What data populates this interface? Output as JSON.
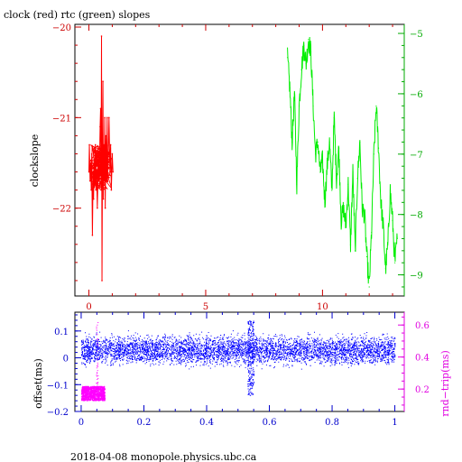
{
  "title": "clock (red) rtc (green) slopes",
  "footer": "2018-04-08  monopole.physics.ubc.ca",
  "colors": {
    "clock": "#ff0000",
    "rtc": "#00ee00",
    "offset": "#0000ff",
    "rndtrip": "#ff00ff",
    "axis_red": "#cc0000",
    "axis_green": "#00aa00",
    "axis_blue": "#0000cc",
    "axis_mag": "#e000e0"
  },
  "chart_data": [
    {
      "type": "line",
      "ylabel": "clockslope",
      "xlim": [
        -0.6,
        13.5
      ],
      "xticks": [
        0,
        5,
        10
      ],
      "left_axis": {
        "ylim": [
          -22.97,
          -19.97
        ],
        "ticks": [
          -20,
          -21,
          -22
        ]
      },
      "right_axis": {
        "ylim": [
          -9.35,
          -4.85
        ],
        "ticks": [
          -5,
          -6,
          -7,
          -8,
          -9
        ]
      },
      "series": [
        {
          "name": "clock",
          "axis": "left",
          "x": [
            0.0,
            0.02,
            0.05,
            0.08,
            0.1,
            0.12,
            0.15,
            0.18,
            0.2,
            0.22,
            0.25,
            0.28,
            0.3,
            0.33,
            0.36,
            0.4,
            0.44,
            0.48,
            0.5,
            0.52,
            0.54,
            0.56,
            0.58,
            0.6,
            0.62,
            0.64,
            0.66,
            0.68,
            0.7,
            0.72,
            0.75,
            0.78,
            0.8,
            0.83,
            0.86,
            0.9,
            0.93,
            0.96,
            1.0,
            1.03
          ],
          "y": [
            -21.6,
            -21.3,
            -21.7,
            -21.5,
            -21.8,
            -21.4,
            -22.3,
            -21.6,
            -21.9,
            -21.5,
            -21.7,
            -21.3,
            -21.8,
            -21.6,
            -22.0,
            -21.5,
            -21.7,
            -21.1,
            -20.9,
            -21.8,
            -20.1,
            -22.8,
            -21.5,
            -20.6,
            -21.9,
            -21.3,
            -21.7,
            -21.0,
            -22.0,
            -21.2,
            -21.6,
            -21.0,
            -21.7,
            -21.4,
            -21.0,
            -21.6,
            -21.3,
            -21.8,
            -21.4,
            -21.6
          ]
        },
        {
          "name": "rtc",
          "axis": "right",
          "x": [
            8.5,
            8.6,
            8.7,
            8.8,
            8.9,
            9.0,
            9.1,
            9.2,
            9.3,
            9.4,
            9.5,
            9.6,
            9.7,
            9.8,
            9.9,
            10.0,
            10.1,
            10.2,
            10.3,
            10.4,
            10.5,
            10.6,
            10.7,
            10.8,
            10.9,
            11.0,
            11.1,
            11.2,
            11.3,
            11.4,
            11.5,
            11.6,
            11.7,
            11.8,
            11.9,
            12.0,
            12.1,
            12.2,
            12.3,
            12.4,
            12.5,
            12.6,
            12.7,
            12.8,
            12.9,
            13.0,
            13.1,
            13.2
          ],
          "y": [
            -5.4,
            -5.9,
            -6.8,
            -6.0,
            -7.5,
            -6.2,
            -5.6,
            -5.2,
            -5.5,
            -5.1,
            -5.3,
            -6.2,
            -7.0,
            -6.8,
            -7.3,
            -7.1,
            -7.8,
            -7.2,
            -6.8,
            -7.6,
            -6.4,
            -7.4,
            -6.9,
            -8.1,
            -7.9,
            -8.2,
            -7.5,
            -8.5,
            -7.3,
            -8.6,
            -7.4,
            -6.8,
            -7.9,
            -8.0,
            -8.7,
            -9.2,
            -8.3,
            -7.0,
            -6.2,
            -6.9,
            -7.8,
            -8.2,
            -8.9,
            -8.5,
            -7.6,
            -8.1,
            -8.8,
            -8.4
          ]
        }
      ]
    },
    {
      "type": "scatter",
      "ylabel": "offset(ms)",
      "y2label": "rnd−trip(ms)",
      "xlim": [
        -0.02,
        1.03
      ],
      "xticks": [
        "0",
        "0.2",
        "0.4",
        "0.6",
        "0.8",
        "1"
      ],
      "xtick_values": [
        0,
        0.2,
        0.4,
        0.6,
        0.8,
        1.0
      ],
      "left_axis": {
        "ylim": [
          -0.2,
          0.17
        ],
        "ticks": [
          "0.1",
          "0",
          "−0.1",
          "−0.2"
        ],
        "tick_values": [
          0.1,
          0,
          -0.1,
          -0.2
        ]
      },
      "right_axis": {
        "ylim": [
          0.06,
          0.68
        ],
        "ticks": [
          "0.6",
          "0.4",
          "0.2"
        ],
        "tick_values": [
          0.6,
          0.4,
          0.2
        ]
      },
      "series": [
        {
          "name": "offset",
          "axis": "left",
          "x_range": [
            0.0,
            1.0
          ],
          "y_center": 0.03,
          "y_spread": 0.025,
          "feature_x": 0.54,
          "feature_y_range": [
            -0.14,
            0.14
          ]
        },
        {
          "name": "rndtrip",
          "axis": "right",
          "x_range": [
            0.0,
            0.075
          ],
          "y_range": [
            0.13,
            0.22
          ],
          "spike_x": 0.05,
          "spike_y_range": [
            0.22,
            0.62
          ]
        }
      ]
    }
  ]
}
